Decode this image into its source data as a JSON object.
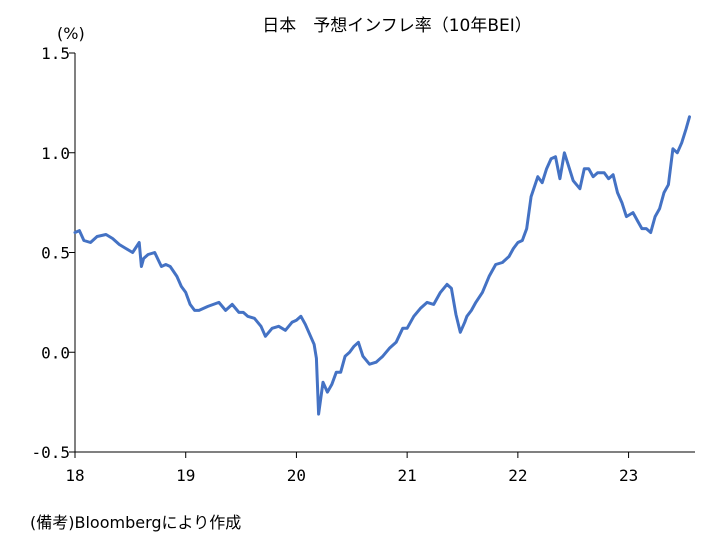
{
  "chart_data": {
    "type": "line",
    "title": "日本　予想インフレ率（10年BEI）",
    "unit_label": "(%)",
    "ylim": [
      -0.5,
      1.5
    ],
    "yticks": [
      {
        "value": 1.5,
        "label": "1.5"
      },
      {
        "value": 1.0,
        "label": "1.0"
      },
      {
        "value": 0.5,
        "label": "0.5"
      },
      {
        "value": 0.0,
        "label": "0.0"
      },
      {
        "value": -0.5,
        "label": "-0.5"
      }
    ],
    "xlim": [
      2018.0,
      2023.6
    ],
    "xticks": [
      {
        "value": 2018,
        "label": "18"
      },
      {
        "value": 2019,
        "label": "19"
      },
      {
        "value": 2020,
        "label": "20"
      },
      {
        "value": 2021,
        "label": "21"
      },
      {
        "value": 2022,
        "label": "22"
      },
      {
        "value": 2023,
        "label": "23"
      }
    ],
    "grid": false,
    "line_color": "#4472C4",
    "series": [
      {
        "x": [
          2018.0,
          2018.04,
          2018.08,
          2018.14,
          2018.2,
          2018.28,
          2018.34,
          2018.4,
          2018.46,
          2018.52,
          2018.58,
          2018.6,
          2018.62,
          2018.66,
          2018.72,
          2018.78,
          2018.82,
          2018.86,
          2018.92,
          2018.96,
          2019.0,
          2019.04,
          2019.08,
          2019.12,
          2019.2,
          2019.3,
          2019.36,
          2019.42,
          2019.48,
          2019.52,
          2019.56,
          2019.62,
          2019.68,
          2019.72,
          2019.78,
          2019.84,
          2019.9,
          2019.96,
          2020.0,
          2020.04,
          2020.08,
          2020.12,
          2020.16,
          2020.18,
          2020.2,
          2020.24,
          2020.28,
          2020.32,
          2020.36,
          2020.4,
          2020.44,
          2020.48,
          2020.52,
          2020.56,
          2020.6,
          2020.66,
          2020.72,
          2020.78,
          2020.84,
          2020.9,
          2020.96,
          2021.0,
          2021.06,
          2021.12,
          2021.18,
          2021.24,
          2021.3,
          2021.36,
          2021.4,
          2021.44,
          2021.48,
          2021.52,
          2021.54,
          2021.58,
          2021.62,
          2021.68,
          2021.74,
          2021.8,
          2021.86,
          2021.92,
          2021.96,
          2022.0,
          2022.04,
          2022.08,
          2022.12,
          2022.18,
          2022.22,
          2022.26,
          2022.3,
          2022.34,
          2022.38,
          2022.42,
          2022.46,
          2022.5,
          2022.56,
          2022.6,
          2022.64,
          2022.68,
          2022.72,
          2022.78,
          2022.82,
          2022.86,
          2022.9,
          2022.94,
          2022.98,
          2023.04,
          2023.08,
          2023.12,
          2023.16,
          2023.2,
          2023.24,
          2023.28,
          2023.32,
          2023.36,
          2023.4,
          2023.44,
          2023.48,
          2023.52,
          2023.55
        ],
        "y": [
          0.6,
          0.61,
          0.56,
          0.55,
          0.58,
          0.59,
          0.57,
          0.54,
          0.52,
          0.5,
          0.55,
          0.43,
          0.47,
          0.49,
          0.5,
          0.43,
          0.44,
          0.43,
          0.38,
          0.33,
          0.3,
          0.24,
          0.21,
          0.21,
          0.23,
          0.25,
          0.21,
          0.24,
          0.2,
          0.2,
          0.18,
          0.17,
          0.13,
          0.08,
          0.12,
          0.13,
          0.11,
          0.15,
          0.16,
          0.18,
          0.14,
          0.09,
          0.04,
          -0.03,
          -0.31,
          -0.15,
          -0.2,
          -0.16,
          -0.1,
          -0.1,
          -0.02,
          0.0,
          0.03,
          0.05,
          -0.02,
          -0.06,
          -0.05,
          -0.02,
          0.02,
          0.05,
          0.12,
          0.12,
          0.18,
          0.22,
          0.25,
          0.24,
          0.3,
          0.34,
          0.32,
          0.19,
          0.1,
          0.15,
          0.18,
          0.21,
          0.25,
          0.3,
          0.38,
          0.44,
          0.45,
          0.48,
          0.52,
          0.55,
          0.56,
          0.62,
          0.78,
          0.88,
          0.85,
          0.92,
          0.97,
          0.98,
          0.87,
          1.0,
          0.93,
          0.86,
          0.82,
          0.92,
          0.92,
          0.88,
          0.9,
          0.9,
          0.87,
          0.89,
          0.8,
          0.75,
          0.68,
          0.7,
          0.66,
          0.62,
          0.62,
          0.6,
          0.68,
          0.72,
          0.8,
          0.84,
          1.02,
          1.0,
          1.05,
          1.12,
          1.18
        ]
      }
    ]
  },
  "footer": {
    "source_note": "(備考)Bloombergにより作成"
  }
}
